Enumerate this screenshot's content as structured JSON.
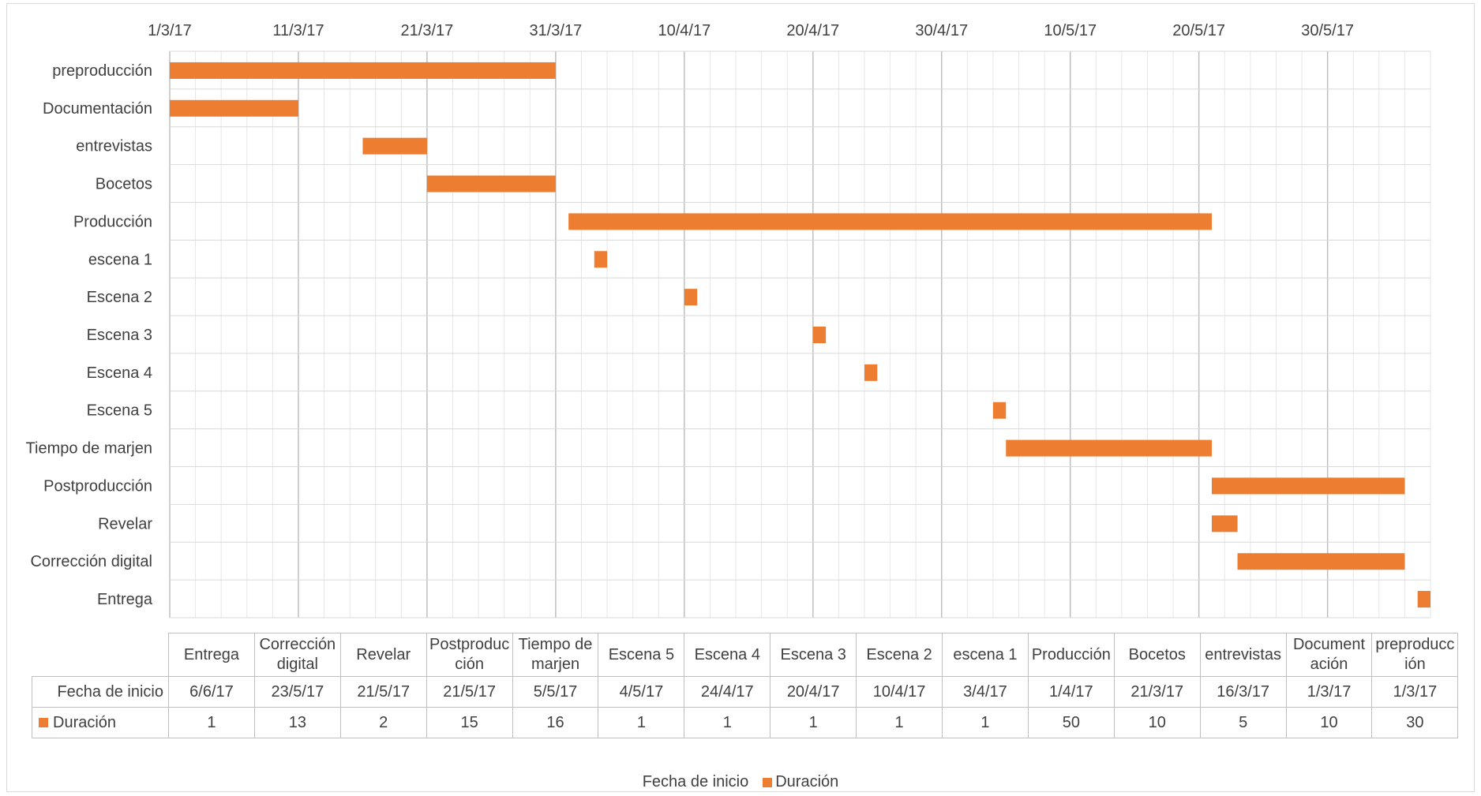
{
  "chart_data": {
    "type": "bar",
    "orientation": "horizontal-gantt",
    "title": "",
    "xlabel": "",
    "ylabel": "",
    "x_tick_labels": [
      "1/3/17",
      "11/3/17",
      "21/3/17",
      "31/3/17",
      "10/4/17",
      "20/4/17",
      "30/4/17",
      "10/5/17",
      "20/5/17",
      "30/5/17"
    ],
    "x_axis_position": "top",
    "xlim": [
      "1/3/17",
      "7/6/17"
    ],
    "categories": [
      "preproducción",
      "Documentación",
      "entrevistas",
      "Bocetos",
      "Producción",
      "escena 1",
      "Escena 2",
      "Escena 3",
      "Escena 4",
      "Escena 5",
      "Tiempo de marjen",
      "Postproducción",
      "Revelar",
      "Corrección digital",
      "Entrega"
    ],
    "series": [
      {
        "name": "Fecha de inicio",
        "visible": false,
        "values": [
          "1/3/17",
          "1/3/17",
          "16/3/17",
          "21/3/17",
          "1/4/17",
          "3/4/17",
          "10/4/17",
          "20/4/17",
          "24/4/17",
          "4/5/17",
          "5/5/17",
          "21/5/17",
          "21/5/17",
          "23/5/17",
          "6/6/17"
        ]
      },
      {
        "name": "Duración",
        "color": "#ed7d31",
        "values": [
          30,
          10,
          5,
          10,
          50,
          1,
          1,
          1,
          1,
          1,
          16,
          15,
          2,
          13,
          1
        ]
      }
    ],
    "grid": true,
    "legend_position": "bottom",
    "data_table": {
      "columns": [
        "Entrega",
        "Corrección digital",
        "Revelar",
        "Postproducción",
        "Tiempo de marjen",
        "Escena 5",
        "Escena 4",
        "Escena 3",
        "Escena 2",
        "escena 1",
        "Producción",
        "Bocetos",
        "entrevistas",
        "Documentación",
        "preproducción"
      ],
      "column_labels_display": [
        [
          "Entrega"
        ],
        [
          "Corrección",
          "digital"
        ],
        [
          "Revelar"
        ],
        [
          "Postproduc",
          "ción"
        ],
        [
          "Tiempo de",
          "marjen"
        ],
        [
          "Escena 5"
        ],
        [
          "Escena 4"
        ],
        [
          "Escena 3"
        ],
        [
          "Escena 2"
        ],
        [
          "escena 1"
        ],
        [
          "Producción"
        ],
        [
          "Bocetos"
        ],
        [
          "entrevistas"
        ],
        [
          "Document",
          "ación"
        ],
        [
          "preproducc",
          "ión"
        ]
      ],
      "rows": [
        {
          "label": "Fecha de inicio",
          "values": [
            "6/6/17",
            "23/5/17",
            "21/5/17",
            "21/5/17",
            "5/5/17",
            "4/5/17",
            "24/4/17",
            "20/4/17",
            "10/4/17",
            "3/4/17",
            "1/4/17",
            "21/3/17",
            "16/3/17",
            "1/3/17",
            "1/3/17"
          ]
        },
        {
          "label": "Duración",
          "values": [
            "1",
            "13",
            "2",
            "15",
            "16",
            "1",
            "1",
            "1",
            "1",
            "1",
            "50",
            "10",
            "5",
            "10",
            "30"
          ]
        }
      ]
    }
  },
  "legend": {
    "items": [
      {
        "label": "Fecha de inicio",
        "swatch": false
      },
      {
        "label": "Duración",
        "swatch": true,
        "color": "#ed7d31"
      }
    ]
  }
}
